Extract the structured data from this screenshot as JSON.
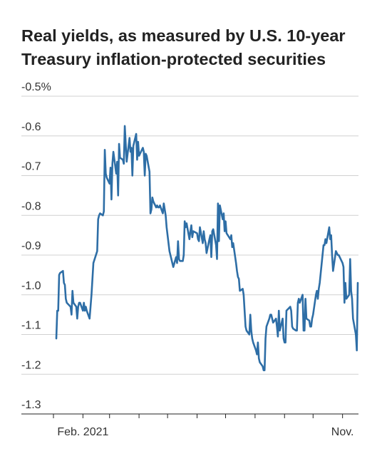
{
  "chart_data": {
    "type": "line",
    "title": "Real yields, as measured by U.S. 10-year Treasury inflation-protected securities",
    "xlabel": "",
    "ylabel": "",
    "y_tick_labels": [
      "-0.5%",
      "-0.6",
      "-0.7",
      "-0.8",
      "-0.9",
      "-1.0",
      "-1.1",
      "-1.2",
      "-1.3"
    ],
    "y_tick_values": [
      -0.5,
      -0.6,
      -0.7,
      -0.8,
      -0.9,
      -1.0,
      -1.1,
      -1.2,
      -1.3
    ],
    "ylim": [
      -1.3,
      -0.5
    ],
    "x_tick_labels": [
      "Feb. 2021",
      "Nov."
    ],
    "x_start": "2021-01-04",
    "x_end": "2021-11-17",
    "x_ticks_dates": [
      "2021-01-01",
      "2021-02-01",
      "2021-03-01",
      "2021-04-01",
      "2021-05-01",
      "2021-06-01",
      "2021-07-01",
      "2021-08-01",
      "2021-09-01",
      "2021-10-01",
      "2021-11-01"
    ],
    "x_label_dates": [
      "2021-02-01",
      "2021-11-01"
    ],
    "grid": true,
    "legend": "none",
    "line_color": "#2e6ea6",
    "series": [
      {
        "x": [
          "2021-01-04",
          "2021-01-05",
          "2021-01-06",
          "2021-01-07",
          "2021-01-08",
          "2021-01-11",
          "2021-01-12",
          "2021-01-13",
          "2021-01-14",
          "2021-01-15",
          "2021-01-19",
          "2021-01-20",
          "2021-01-21",
          "2021-01-22",
          "2021-01-25",
          "2021-01-26",
          "2021-01-27",
          "2021-01-28",
          "2021-01-29",
          "2021-02-01",
          "2021-02-02",
          "2021-02-03",
          "2021-02-04",
          "2021-02-05",
          "2021-02-08",
          "2021-02-09",
          "2021-02-10",
          "2021-02-11",
          "2021-02-12",
          "2021-02-16",
          "2021-02-17",
          "2021-02-18",
          "2021-02-19",
          "2021-02-22",
          "2021-02-23",
          "2021-02-24",
          "2021-02-25",
          "2021-02-26",
          "2021-03-01",
          "2021-03-02",
          "2021-03-03",
          "2021-03-04",
          "2021-03-05",
          "2021-03-08",
          "2021-03-09",
          "2021-03-10",
          "2021-03-11",
          "2021-03-12",
          "2021-03-15",
          "2021-03-16",
          "2021-03-17",
          "2021-03-18",
          "2021-03-19",
          "2021-03-22",
          "2021-03-23",
          "2021-03-24",
          "2021-03-25",
          "2021-03-26",
          "2021-03-29",
          "2021-03-30",
          "2021-03-31",
          "2021-04-01",
          "2021-04-05",
          "2021-04-06",
          "2021-04-07",
          "2021-04-08",
          "2021-04-09",
          "2021-04-12",
          "2021-04-13",
          "2021-04-14",
          "2021-04-15",
          "2021-04-16",
          "2021-04-19",
          "2021-04-20",
          "2021-04-21",
          "2021-04-22",
          "2021-04-23",
          "2021-04-26",
          "2021-04-27",
          "2021-04-28",
          "2021-04-29",
          "2021-04-30",
          "2021-05-03",
          "2021-05-04",
          "2021-05-05",
          "2021-05-06",
          "2021-05-07",
          "2021-05-10",
          "2021-05-11",
          "2021-05-12",
          "2021-05-13",
          "2021-05-14",
          "2021-05-17",
          "2021-05-18",
          "2021-05-19",
          "2021-05-20",
          "2021-05-21",
          "2021-05-24",
          "2021-05-25",
          "2021-05-26",
          "2021-05-27",
          "2021-05-28",
          "2021-06-01",
          "2021-06-02",
          "2021-06-03",
          "2021-06-04",
          "2021-06-07",
          "2021-06-08",
          "2021-06-09",
          "2021-06-10",
          "2021-06-11",
          "2021-06-14",
          "2021-06-15",
          "2021-06-16",
          "2021-06-17",
          "2021-06-18",
          "2021-06-21",
          "2021-06-22",
          "2021-06-23",
          "2021-06-24",
          "2021-06-25",
          "2021-06-28",
          "2021-06-29",
          "2021-06-30",
          "2021-07-01",
          "2021-07-02",
          "2021-07-06",
          "2021-07-07",
          "2021-07-08",
          "2021-07-09",
          "2021-07-12",
          "2021-07-13",
          "2021-07-14",
          "2021-07-15",
          "2021-07-16",
          "2021-07-19",
          "2021-07-20",
          "2021-07-21",
          "2021-07-22",
          "2021-07-23",
          "2021-07-26",
          "2021-07-27",
          "2021-07-28",
          "2021-07-29",
          "2021-07-30",
          "2021-08-02",
          "2021-08-03",
          "2021-08-04",
          "2021-08-05",
          "2021-08-06",
          "2021-08-09",
          "2021-08-10",
          "2021-08-11",
          "2021-08-12",
          "2021-08-13",
          "2021-08-16",
          "2021-08-17",
          "2021-08-18",
          "2021-08-19",
          "2021-08-20",
          "2021-08-23",
          "2021-08-24",
          "2021-08-25",
          "2021-08-26",
          "2021-08-27",
          "2021-08-30",
          "2021-08-31",
          "2021-09-01",
          "2021-09-02",
          "2021-09-03",
          "2021-09-07",
          "2021-09-08",
          "2021-09-09",
          "2021-09-10",
          "2021-09-13",
          "2021-09-14",
          "2021-09-15",
          "2021-09-16",
          "2021-09-17",
          "2021-09-20",
          "2021-09-21",
          "2021-09-22",
          "2021-09-23",
          "2021-09-24",
          "2021-09-27",
          "2021-09-28",
          "2021-09-29",
          "2021-09-30",
          "2021-10-01",
          "2021-10-04",
          "2021-10-05",
          "2021-10-06",
          "2021-10-07",
          "2021-10-08",
          "2021-10-12",
          "2021-10-13",
          "2021-10-14",
          "2021-10-15",
          "2021-10-18",
          "2021-10-19",
          "2021-10-20",
          "2021-10-21",
          "2021-10-22",
          "2021-10-25",
          "2021-10-26",
          "2021-10-27",
          "2021-10-28",
          "2021-10-29",
          "2021-11-01",
          "2021-11-02",
          "2021-11-03",
          "2021-11-04",
          "2021-11-05",
          "2021-11-08",
          "2021-11-09",
          "2021-11-10",
          "2021-11-11",
          "2021-11-12",
          "2021-11-15",
          "2021-11-16",
          "2021-11-17"
        ],
        "values": [
          -1.11,
          -1.04,
          -1.04,
          -0.95,
          -0.945,
          -0.94,
          -0.97,
          -0.975,
          -1.01,
          -1.02,
          -1.03,
          -1.05,
          -0.99,
          -1.02,
          -1.03,
          -1.06,
          -1.03,
          -1.02,
          -1.02,
          -1.04,
          -1.02,
          -1.04,
          -1.03,
          -1.04,
          -1.06,
          -1.03,
          -1.0,
          -0.96,
          -0.92,
          -0.89,
          -0.81,
          -0.8,
          -0.795,
          -0.8,
          -0.79,
          -0.635,
          -0.695,
          -0.705,
          -0.72,
          -0.68,
          -0.76,
          -0.67,
          -0.64,
          -0.695,
          -0.665,
          -0.75,
          -0.62,
          -0.655,
          -0.66,
          -0.67,
          -0.575,
          -0.62,
          -0.665,
          -0.605,
          -0.64,
          -0.63,
          -0.7,
          -0.625,
          -0.595,
          -0.66,
          -0.615,
          -0.65,
          -0.63,
          -0.64,
          -0.7,
          -0.645,
          -0.65,
          -0.69,
          -0.795,
          -0.785,
          -0.755,
          -0.765,
          -0.78,
          -0.775,
          -0.78,
          -0.78,
          -0.775,
          -0.795,
          -0.77,
          -0.785,
          -0.8,
          -0.83,
          -0.89,
          -0.9,
          -0.91,
          -0.92,
          -0.93,
          -0.905,
          -0.92,
          -0.865,
          -0.91,
          -0.915,
          -0.915,
          -0.9,
          -0.815,
          -0.83,
          -0.82,
          -0.86,
          -0.84,
          -0.825,
          -0.855,
          -0.84,
          -0.845,
          -0.86,
          -0.865,
          -0.83,
          -0.87,
          -0.84,
          -0.86,
          -0.87,
          -0.895,
          -0.86,
          -0.85,
          -0.905,
          -0.84,
          -0.835,
          -0.875,
          -0.91,
          -0.77,
          -0.865,
          -0.775,
          -0.81,
          -0.795,
          -0.84,
          -0.815,
          -0.845,
          -0.86,
          -0.85,
          -0.88,
          -0.87,
          -0.92,
          -0.94,
          -0.955,
          -0.96,
          -0.99,
          -0.985,
          -1.0,
          -1.04,
          -1.08,
          -1.09,
          -1.1,
          -1.05,
          -1.09,
          -1.11,
          -1.12,
          -1.14,
          -1.15,
          -1.12,
          -1.16,
          -1.17,
          -1.18,
          -1.19,
          -1.19,
          -1.11,
          -1.08,
          -1.06,
          -1.05,
          -1.05,
          -1.06,
          -1.07,
          -1.06,
          -1.08,
          -1.105,
          -1.04,
          -1.09,
          -1.06,
          -1.11,
          -1.12,
          -1.12,
          -1.04,
          -1.03,
          -1.04,
          -1.08,
          -1.085,
          -1.09,
          -1.09,
          -1.02,
          -1.01,
          -1.02,
          -1.0,
          -1.09,
          -1.09,
          -1.01,
          -1.06,
          -1.065,
          -1.08,
          -1.08,
          -1.06,
          -1.05,
          -1.0,
          -0.99,
          -1.01,
          -0.985,
          -0.97,
          -0.875,
          -0.875,
          -0.86,
          -0.87,
          -0.83,
          -0.86,
          -0.85,
          -0.9,
          -0.94,
          -0.89,
          -0.895,
          -0.9,
          -0.9,
          -0.905,
          -0.92,
          -0.93,
          -1.02,
          -0.97,
          -1.01,
          -1.0,
          -0.91,
          -0.99,
          -1.01,
          -1.06,
          -1.1,
          -1.14,
          -0.97
        ]
      }
    ]
  }
}
